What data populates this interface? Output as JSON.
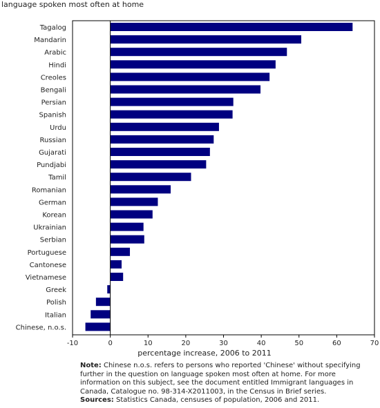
{
  "chart_data": {
    "type": "bar",
    "orientation": "horizontal",
    "title": "language spoken most often at home",
    "xlabel": "percentage increase, 2006 to 2011",
    "ylabel": "",
    "xlim": [
      -10,
      70
    ],
    "xticks": [
      -10,
      0,
      10,
      20,
      30,
      40,
      50,
      60,
      70
    ],
    "grid": false,
    "bar_color": "#000080",
    "categories": [
      "Tagalog",
      "Mandarin",
      "Arabic",
      "Hindi",
      "Creoles",
      "Bengali",
      "Persian",
      "Spanish",
      "Urdu",
      "Russian",
      "Gujarati",
      "Pundjabi",
      "Tamil",
      "Romanian",
      "German",
      "Korean",
      "Ukrainian",
      "Serbian",
      "Portuguese",
      "Cantonese",
      "Vietnamese",
      "Greek",
      "Polish",
      "Italian",
      "Chinese, n.o.s."
    ],
    "values": [
      64.2,
      50.6,
      46.8,
      43.8,
      42.2,
      39.8,
      32.6,
      32.4,
      28.8,
      27.4,
      26.4,
      25.4,
      21.4,
      16.0,
      12.6,
      11.2,
      8.8,
      9.0,
      5.2,
      3.0,
      3.4,
      -0.8,
      -3.8,
      -5.2,
      -6.6
    ]
  },
  "note": {
    "note_label": "Note:",
    "note_text": " Chinese n.o.s. refers to persons who reported 'Chinese' without specifying further in the question on language spoken most often at home. For more information on this subject, see the document entitled Immigrant languages in Canada, Catalogue no. 98-314-X2011003, in the Census in Brief series.",
    "sources_label": "Sources:",
    "sources_text": " Statistics Canada, censuses of population, 2006 and 2011."
  }
}
